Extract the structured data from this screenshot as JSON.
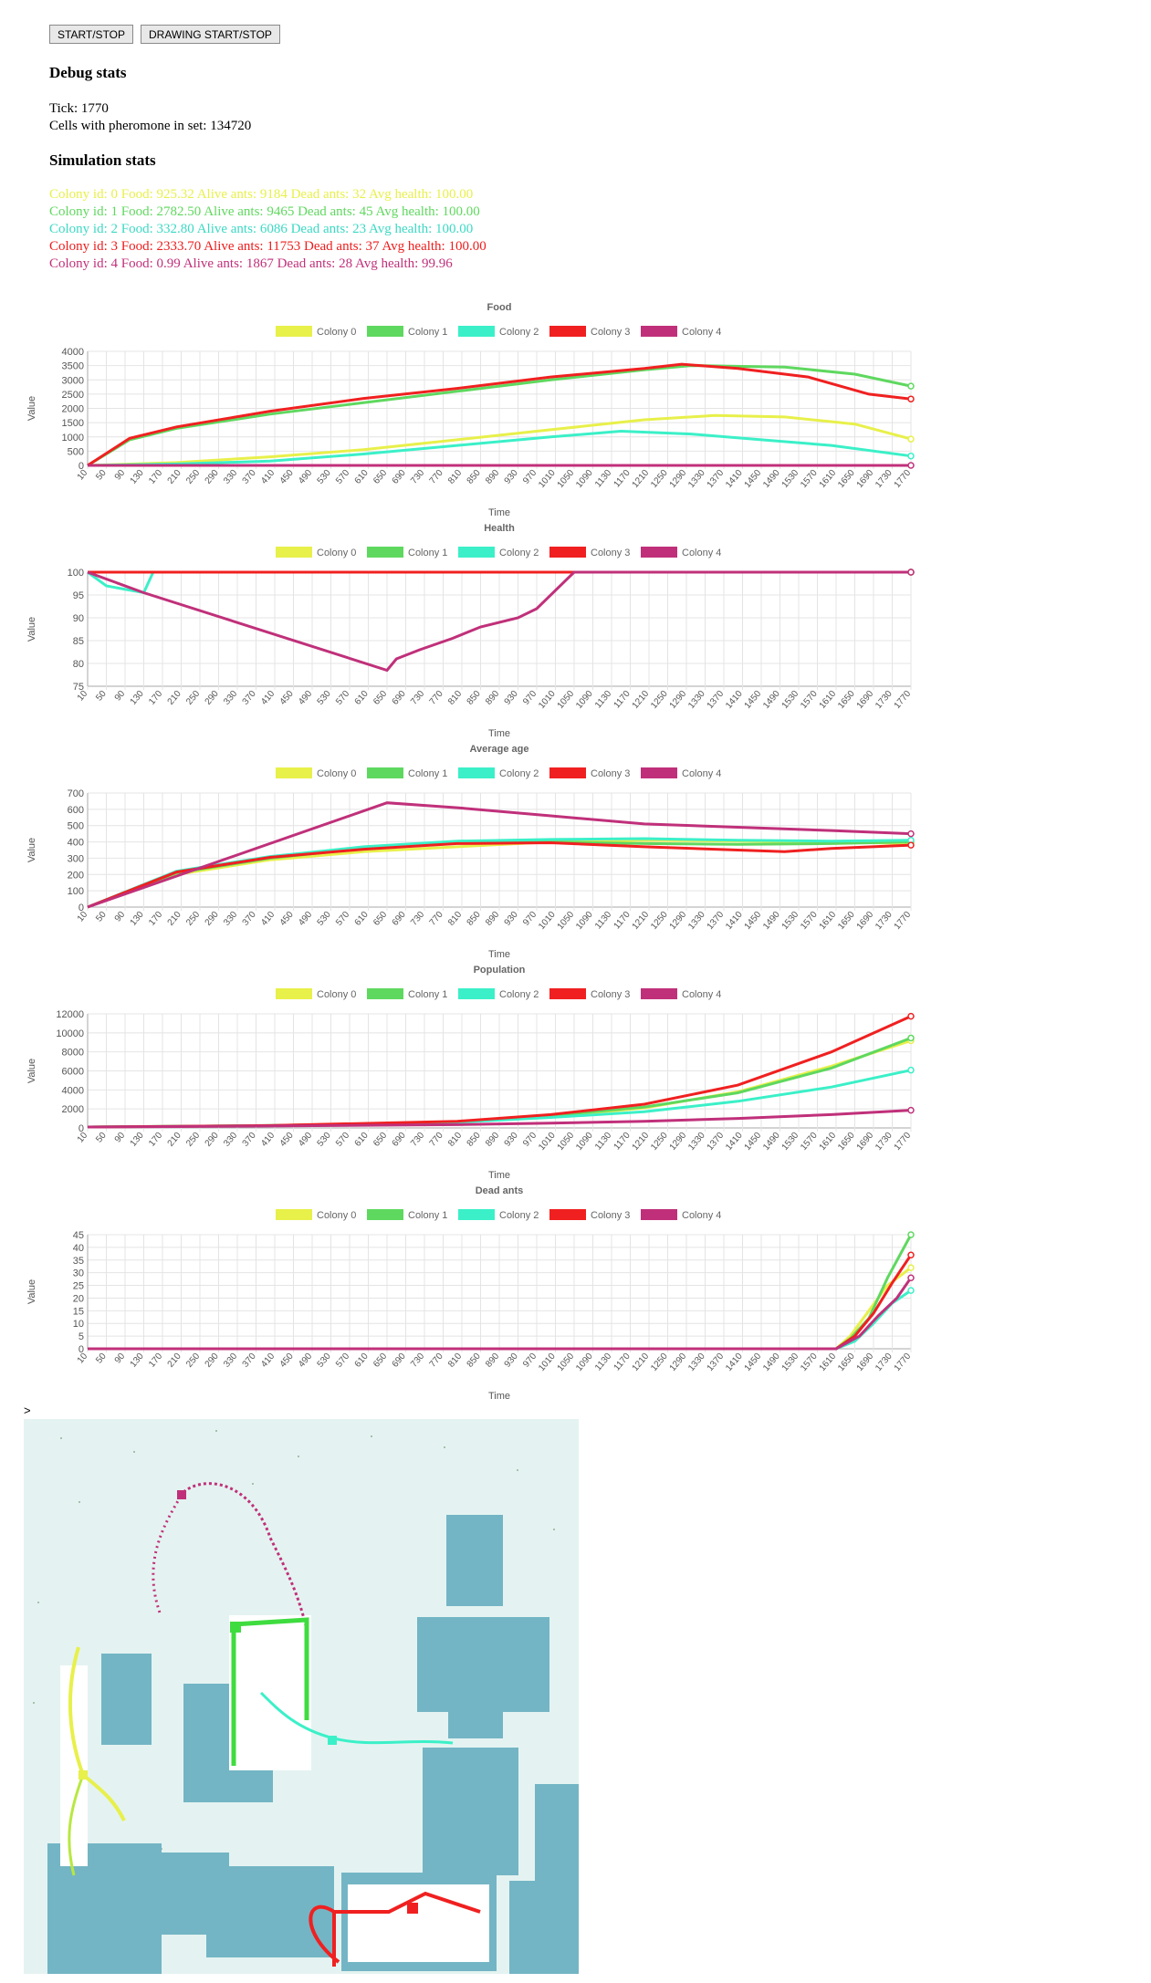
{
  "buttons": {
    "start_stop": "START/STOP",
    "drawing_start_stop": "DRAWING START/STOP"
  },
  "debug": {
    "heading": "Debug stats",
    "tick": "Tick: 1770",
    "pheromone": "Cells with pheromone in set: 134720"
  },
  "sim": {
    "heading": "Simulation stats",
    "colonies": [
      {
        "text": "Colony id: 0 Food: 925.32 Alive ants: 9184 Dead ants: 32 Avg health: 100.00",
        "color": "#e8f04a"
      },
      {
        "text": "Colony id: 1 Food: 2782.50 Alive ants: 9465 Dead ants: 45 Avg health: 100.00",
        "color": "#5fd85f"
      },
      {
        "text": "Colony id: 2 Food: 332.80 Alive ants: 6086 Dead ants: 23 Avg health: 100.00",
        "color": "#3bd9c4"
      },
      {
        "text": "Colony id: 3 Food: 2333.70 Alive ants: 11753 Dead ants: 37 Avg health: 100.00",
        "color": "#ee1c1c"
      },
      {
        "text": "Colony id: 4 Food: 0.99 Alive ants: 1867 Dead ants: 28 Avg health: 99.96",
        "color": "#c0307a"
      }
    ]
  },
  "legend": [
    "Colony 0",
    "Colony 1",
    "Colony 2",
    "Colony 3",
    "Colony 4"
  ],
  "colors": [
    "#e8f04a",
    "#5fd85f",
    "#3bf0c8",
    "#f02020",
    "#c0307a"
  ],
  "chart_data": [
    {
      "type": "line",
      "title": "Food",
      "xlabel": "Time",
      "ylabel": "Value",
      "ylim": [
        0,
        4000
      ],
      "yticks": [
        "0",
        "500",
        "1000",
        "1500",
        "2000",
        "2500",
        "3000",
        "3500",
        "4000"
      ],
      "series": [
        {
          "name": "Colony 0",
          "points": [
            [
              10,
              0
            ],
            [
              200,
              100
            ],
            [
              400,
              300
            ],
            [
              600,
              550
            ],
            [
              800,
              900
            ],
            [
              1000,
              1250
            ],
            [
              1200,
              1600
            ],
            [
              1350,
              1750
            ],
            [
              1500,
              1700
            ],
            [
              1650,
              1450
            ],
            [
              1770,
              925
            ]
          ]
        },
        {
          "name": "Colony 1",
          "points": [
            [
              10,
              0
            ],
            [
              100,
              900
            ],
            [
              200,
              1300
            ],
            [
              400,
              1800
            ],
            [
              600,
              2200
            ],
            [
              800,
              2600
            ],
            [
              1000,
              3000
            ],
            [
              1200,
              3350
            ],
            [
              1300,
              3500
            ],
            [
              1500,
              3450
            ],
            [
              1650,
              3200
            ],
            [
              1770,
              2780
            ]
          ]
        },
        {
          "name": "Colony 2",
          "points": [
            [
              10,
              0
            ],
            [
              200,
              50
            ],
            [
              400,
              150
            ],
            [
              600,
              400
            ],
            [
              800,
              700
            ],
            [
              1000,
              1000
            ],
            [
              1150,
              1200
            ],
            [
              1300,
              1100
            ],
            [
              1450,
              900
            ],
            [
              1600,
              700
            ],
            [
              1770,
              330
            ]
          ]
        },
        {
          "name": "Colony 3",
          "points": [
            [
              10,
              0
            ],
            [
              100,
              950
            ],
            [
              200,
              1350
            ],
            [
              400,
              1900
            ],
            [
              600,
              2350
            ],
            [
              800,
              2700
            ],
            [
              1000,
              3100
            ],
            [
              1200,
              3400
            ],
            [
              1280,
              3550
            ],
            [
              1400,
              3400
            ],
            [
              1550,
              3100
            ],
            [
              1680,
              2500
            ],
            [
              1770,
              2330
            ]
          ]
        },
        {
          "name": "Colony 4",
          "points": [
            [
              10,
              0
            ],
            [
              1770,
              0
            ]
          ]
        }
      ]
    },
    {
      "type": "line",
      "title": "Health",
      "xlabel": "Time",
      "ylabel": "Value",
      "ylim": [
        75,
        100
      ],
      "yticks": [
        "75",
        "80",
        "85",
        "90",
        "95",
        "100"
      ],
      "series": [
        {
          "name": "Colony 0",
          "points": [
            [
              10,
              100
            ],
            [
              1770,
              100
            ]
          ]
        },
        {
          "name": "Colony 1",
          "points": [
            [
              10,
              100
            ],
            [
              1770,
              100
            ]
          ]
        },
        {
          "name": "Colony 2",
          "points": [
            [
              10,
              100
            ],
            [
              50,
              97
            ],
            [
              130,
              95.5
            ],
            [
              150,
              100
            ],
            [
              1770,
              100
            ]
          ]
        },
        {
          "name": "Colony 3",
          "points": [
            [
              10,
              100
            ],
            [
              1770,
              100
            ]
          ]
        },
        {
          "name": "Colony 4",
          "points": [
            [
              10,
              100
            ],
            [
              130,
              95.5
            ],
            [
              650,
              78.5
            ],
            [
              670,
              81
            ],
            [
              720,
              83
            ],
            [
              790,
              85.5
            ],
            [
              850,
              88
            ],
            [
              930,
              90
            ],
            [
              970,
              92
            ],
            [
              1050,
              100
            ],
            [
              1770,
              100
            ]
          ]
        }
      ]
    },
    {
      "type": "line",
      "title": "Average age",
      "xlabel": "Time",
      "ylabel": "Value",
      "ylim": [
        0,
        700
      ],
      "yticks": [
        "0",
        "100",
        "200",
        "300",
        "400",
        "500",
        "600",
        "700"
      ],
      "series": [
        {
          "name": "Colony 0",
          "points": [
            [
              10,
              0
            ],
            [
              200,
              200
            ],
            [
              400,
              290
            ],
            [
              600,
              340
            ],
            [
              800,
              370
            ],
            [
              1000,
              400
            ],
            [
              1200,
              410
            ],
            [
              1400,
              405
            ],
            [
              1600,
              400
            ],
            [
              1770,
              390
            ]
          ]
        },
        {
          "name": "Colony 1",
          "points": [
            [
              10,
              0
            ],
            [
              200,
              210
            ],
            [
              400,
              300
            ],
            [
              600,
              360
            ],
            [
              800,
              395
            ],
            [
              1000,
              400
            ],
            [
              1200,
              390
            ],
            [
              1400,
              385
            ],
            [
              1600,
              390
            ],
            [
              1770,
              400
            ]
          ]
        },
        {
          "name": "Colony 2",
          "points": [
            [
              10,
              0
            ],
            [
              200,
              220
            ],
            [
              400,
              310
            ],
            [
              600,
              370
            ],
            [
              800,
              405
            ],
            [
              1000,
              415
            ],
            [
              1200,
              420
            ],
            [
              1400,
              410
            ],
            [
              1600,
              405
            ],
            [
              1770,
              410
            ]
          ]
        },
        {
          "name": "Colony 3",
          "points": [
            [
              10,
              0
            ],
            [
              200,
              215
            ],
            [
              400,
              305
            ],
            [
              600,
              355
            ],
            [
              800,
              390
            ],
            [
              1000,
              395
            ],
            [
              1200,
              370
            ],
            [
              1400,
              350
            ],
            [
              1500,
              340
            ],
            [
              1600,
              360
            ],
            [
              1770,
              380
            ]
          ]
        },
        {
          "name": "Colony 4",
          "points": [
            [
              10,
              0
            ],
            [
              650,
              640
            ],
            [
              800,
              610
            ],
            [
              1000,
              560
            ],
            [
              1200,
              510
            ],
            [
              1400,
              490
            ],
            [
              1600,
              470
            ],
            [
              1770,
              450
            ]
          ]
        }
      ]
    },
    {
      "type": "line",
      "title": "Population",
      "xlabel": "Time",
      "ylabel": "Value",
      "ylim": [
        0,
        12000
      ],
      "yticks": [
        "0",
        "2000",
        "4000",
        "6000",
        "8000",
        "10000",
        "12000"
      ],
      "series": [
        {
          "name": "Colony 0",
          "points": [
            [
              10,
              100
            ],
            [
              400,
              250
            ],
            [
              800,
              600
            ],
            [
              1000,
              1200
            ],
            [
              1200,
              2100
            ],
            [
              1400,
              3800
            ],
            [
              1600,
              6500
            ],
            [
              1770,
              9180
            ]
          ]
        },
        {
          "name": "Colony 1",
          "points": [
            [
              10,
              100
            ],
            [
              400,
              250
            ],
            [
              800,
              600
            ],
            [
              1000,
              1300
            ],
            [
              1200,
              2200
            ],
            [
              1400,
              3700
            ],
            [
              1600,
              6300
            ],
            [
              1770,
              9460
            ]
          ]
        },
        {
          "name": "Colony 2",
          "points": [
            [
              10,
              100
            ],
            [
              400,
              250
            ],
            [
              800,
              600
            ],
            [
              1000,
              1100
            ],
            [
              1200,
              1700
            ],
            [
              1400,
              2800
            ],
            [
              1600,
              4300
            ],
            [
              1770,
              6080
            ]
          ]
        },
        {
          "name": "Colony 3",
          "points": [
            [
              10,
              100
            ],
            [
              400,
              250
            ],
            [
              800,
              700
            ],
            [
              1000,
              1400
            ],
            [
              1200,
              2500
            ],
            [
              1400,
              4500
            ],
            [
              1600,
              8000
            ],
            [
              1770,
              11750
            ]
          ]
        },
        {
          "name": "Colony 4",
          "points": [
            [
              10,
              100
            ],
            [
              400,
              200
            ],
            [
              800,
              350
            ],
            [
              1000,
              500
            ],
            [
              1200,
              700
            ],
            [
              1400,
              1000
            ],
            [
              1600,
              1400
            ],
            [
              1770,
              1860
            ]
          ]
        }
      ]
    },
    {
      "type": "line",
      "title": "Dead ants",
      "xlabel": "Time",
      "ylabel": "Value",
      "ylim": [
        0,
        45
      ],
      "yticks": [
        "0",
        "5",
        "10",
        "15",
        "20",
        "25",
        "30",
        "35",
        "40",
        "45"
      ],
      "series": [
        {
          "name": "Colony 0",
          "points": [
            [
              10,
              0
            ],
            [
              1610,
              0
            ],
            [
              1640,
              5
            ],
            [
              1680,
              15
            ],
            [
              1720,
              25
            ],
            [
              1770,
              32
            ]
          ]
        },
        {
          "name": "Colony 1",
          "points": [
            [
              10,
              0
            ],
            [
              1610,
              0
            ],
            [
              1640,
              4
            ],
            [
              1680,
              12
            ],
            [
              1720,
              28
            ],
            [
              1770,
              45
            ]
          ]
        },
        {
          "name": "Colony 2",
          "points": [
            [
              10,
              0
            ],
            [
              1610,
              0
            ],
            [
              1650,
              3
            ],
            [
              1690,
              10
            ],
            [
              1730,
              18
            ],
            [
              1770,
              23
            ]
          ]
        },
        {
          "name": "Colony 3",
          "points": [
            [
              10,
              0
            ],
            [
              1610,
              0
            ],
            [
              1650,
              5
            ],
            [
              1690,
              14
            ],
            [
              1730,
              26
            ],
            [
              1770,
              37
            ]
          ]
        },
        {
          "name": "Colony 4",
          "points": [
            [
              10,
              0
            ],
            [
              1610,
              0
            ],
            [
              1660,
              5
            ],
            [
              1700,
              13
            ],
            [
              1740,
              20
            ],
            [
              1770,
              28
            ]
          ]
        }
      ]
    }
  ],
  "x_ticks": [
    "10",
    "50",
    "90",
    "130",
    "170",
    "210",
    "250",
    "290",
    "330",
    "370",
    "410",
    "450",
    "490",
    "530",
    "570",
    "610",
    "650",
    "690",
    "730",
    "770",
    "810",
    "850",
    "890",
    "930",
    "970",
    "1010",
    "1050",
    "1090",
    "1130",
    "1170",
    "1210",
    "1250",
    "1290",
    "1330",
    "1370",
    "1410",
    "1450",
    "1490",
    "1530",
    "1570",
    "1610",
    "1650",
    "1690",
    "1730",
    "1770"
  ],
  "canvas_label": ">",
  "map": {
    "background": "#e4f3f1",
    "obstacle_color": "#73b5c5"
  }
}
